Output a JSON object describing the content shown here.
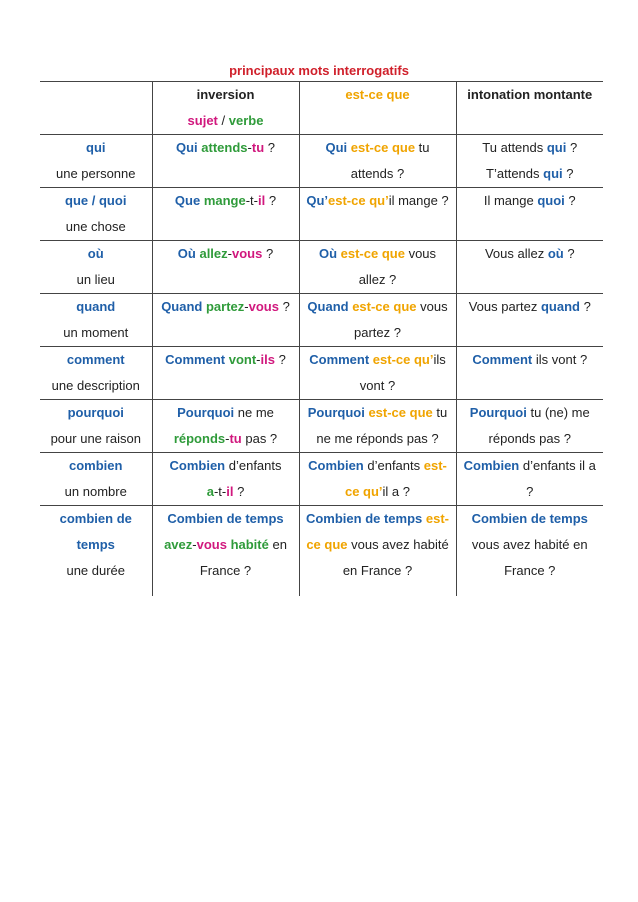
{
  "title": "principaux mots interrogatifs",
  "colors": {
    "title": "#d0202b",
    "interrogative": "#1f5fa8",
    "verb": "#2f9b3a",
    "subject": "#d1187e",
    "est_ce_que": "#f0a400"
  },
  "header": [
    [
      [
        {
          "t": "inversion",
          "c": "b"
        }
      ],
      [
        {
          "t": "sujet",
          "c": "pink"
        },
        {
          "t": " / ",
          "c": "dark"
        },
        {
          "t": "verbe",
          "c": "green"
        }
      ]
    ],
    [
      [
        {
          "t": "est-ce que",
          "c": "orange"
        }
      ]
    ],
    [
      [
        {
          "t": "intonation montante",
          "c": "b"
        }
      ]
    ]
  ],
  "rows": [
    {
      "word": "qui",
      "desc": "une personne",
      "inv": [
        [
          {
            "t": "Qui ",
            "c": "blue"
          },
          {
            "t": "attends",
            "c": "green"
          },
          {
            "t": "-",
            "c": "dark"
          },
          {
            "t": "tu",
            "c": "pink"
          },
          {
            "t": " ?",
            "c": ""
          }
        ]
      ],
      "est": [
        [
          {
            "t": "Qui ",
            "c": "blue"
          },
          {
            "t": "est-ce que",
            "c": "orange"
          },
          {
            "t": " tu",
            "c": ""
          }
        ],
        [
          {
            "t": "attends ?",
            "c": ""
          }
        ]
      ],
      "into": [
        [
          {
            "t": "Tu attends ",
            "c": ""
          },
          {
            "t": "qui",
            "c": "blue"
          },
          {
            "t": " ?",
            "c": ""
          }
        ],
        [
          {
            "t": "T’attends ",
            "c": ""
          },
          {
            "t": "qui",
            "c": "blue"
          },
          {
            "t": " ?",
            "c": ""
          }
        ]
      ]
    },
    {
      "word": "que / quoi",
      "desc": "une chose",
      "inv": [
        [
          {
            "t": "Que ",
            "c": "blue"
          },
          {
            "t": "mange",
            "c": "green"
          },
          {
            "t": "-t-",
            "c": ""
          },
          {
            "t": "il",
            "c": "pink"
          },
          {
            "t": " ?",
            "c": ""
          }
        ]
      ],
      "est": [
        [
          {
            "t": "Qu’",
            "c": "blue"
          },
          {
            "t": "est-ce qu’",
            "c": "orange"
          },
          {
            "t": "il mange ?",
            "c": ""
          }
        ]
      ],
      "into": [
        [
          {
            "t": "Il mange ",
            "c": ""
          },
          {
            "t": "quoi",
            "c": "blue"
          },
          {
            "t": " ?",
            "c": ""
          }
        ]
      ]
    },
    {
      "word": "où",
      "desc": "un lieu",
      "inv": [
        [
          {
            "t": "Où ",
            "c": "blue"
          },
          {
            "t": "allez",
            "c": "green"
          },
          {
            "t": "-",
            "c": ""
          },
          {
            "t": "vous",
            "c": "pink"
          },
          {
            "t": " ?",
            "c": ""
          }
        ]
      ],
      "est": [
        [
          {
            "t": "Où ",
            "c": "blue"
          },
          {
            "t": "est-ce que",
            "c": "orange"
          },
          {
            "t": " vous",
            "c": ""
          }
        ],
        [
          {
            "t": "allez ?",
            "c": ""
          }
        ]
      ],
      "into": [
        [
          {
            "t": "Vous allez ",
            "c": ""
          },
          {
            "t": "où",
            "c": "blue"
          },
          {
            "t": " ?",
            "c": ""
          }
        ]
      ]
    },
    {
      "word": "quand",
      "desc": "un moment",
      "inv": [
        [
          {
            "t": "Quand ",
            "c": "blue"
          },
          {
            "t": "partez",
            "c": "green"
          },
          {
            "t": "-",
            "c": ""
          },
          {
            "t": "vous",
            "c": "pink"
          },
          {
            "t": " ?",
            "c": ""
          }
        ]
      ],
      "est": [
        [
          {
            "t": "Quand ",
            "c": "blue"
          },
          {
            "t": "est-ce que",
            "c": "orange"
          },
          {
            "t": " vous",
            "c": ""
          }
        ],
        [
          {
            "t": "partez ?",
            "c": ""
          }
        ]
      ],
      "into": [
        [
          {
            "t": "Vous partez ",
            "c": ""
          },
          {
            "t": "quand",
            "c": "blue"
          },
          {
            "t": " ?",
            "c": ""
          }
        ]
      ]
    },
    {
      "word": "comment",
      "desc": "une description",
      "inv": [
        [
          {
            "t": "Comment ",
            "c": "blue"
          },
          {
            "t": "vont",
            "c": "green"
          },
          {
            "t": "-",
            "c": ""
          },
          {
            "t": "ils",
            "c": "pink"
          },
          {
            "t": " ?",
            "c": ""
          }
        ]
      ],
      "est": [
        [
          {
            "t": "Comment ",
            "c": "blue"
          },
          {
            "t": "est-ce qu’",
            "c": "orange"
          },
          {
            "t": "ils",
            "c": ""
          }
        ],
        [
          {
            "t": "vont ?",
            "c": ""
          }
        ]
      ],
      "into": [
        [
          {
            "t": "Comment",
            "c": "blue"
          },
          {
            "t": " ils vont ?",
            "c": ""
          }
        ]
      ]
    },
    {
      "word": "pourquoi",
      "desc": "pour une raison",
      "inv": [
        [
          {
            "t": "Pourquoi",
            "c": "blue"
          },
          {
            "t": " ne me",
            "c": ""
          }
        ],
        [
          {
            "t": "réponds",
            "c": "green"
          },
          {
            "t": "-",
            "c": ""
          },
          {
            "t": "tu",
            "c": "pink"
          },
          {
            "t": " pas ?",
            "c": ""
          }
        ]
      ],
      "est": [
        [
          {
            "t": "Pourquoi ",
            "c": "blue"
          },
          {
            "t": "est-ce que",
            "c": "orange"
          },
          {
            "t": " tu",
            "c": ""
          }
        ],
        [
          {
            "t": "ne me réponds pas ?",
            "c": ""
          }
        ]
      ],
      "into": [
        [
          {
            "t": "Pourquoi",
            "c": "blue"
          },
          {
            "t": " tu (ne) me",
            "c": ""
          }
        ],
        [
          {
            "t": "réponds pas ?",
            "c": ""
          }
        ]
      ]
    },
    {
      "word": "combien",
      "desc": "un nombre",
      "inv": [
        [
          {
            "t": "Combien",
            "c": "blue"
          },
          {
            "t": " d’enfants",
            "c": ""
          }
        ],
        [
          {
            "t": "a",
            "c": "green"
          },
          {
            "t": "-t-",
            "c": ""
          },
          {
            "t": "il",
            "c": "pink"
          },
          {
            "t": " ?",
            "c": ""
          }
        ]
      ],
      "est": [
        [
          {
            "t": "Combien",
            "c": "blue"
          },
          {
            "t": " d’enfants ",
            "c": ""
          },
          {
            "t": "est-",
            "c": "orange"
          }
        ],
        [
          {
            "t": "ce qu’",
            "c": "orange"
          },
          {
            "t": "il a ?",
            "c": ""
          }
        ]
      ],
      "into": [
        [
          {
            "t": "Combien",
            "c": "blue"
          },
          {
            "t": " d’enfants il a ?",
            "c": ""
          }
        ]
      ]
    },
    {
      "word": "combien de temps",
      "desc": "une durée",
      "inv": [
        [
          {
            "t": "Combien de temps",
            "c": "blue"
          }
        ],
        [
          {
            "t": "avez",
            "c": "green"
          },
          {
            "t": "-",
            "c": ""
          },
          {
            "t": "vous",
            "c": "pink"
          },
          {
            "t": " habité",
            "c": "green"
          },
          {
            "t": " en",
            "c": ""
          }
        ],
        [
          {
            "t": "France ?",
            "c": ""
          }
        ]
      ],
      "est": [
        [
          {
            "t": "Combien de temps ",
            "c": "blue"
          },
          {
            "t": "est-",
            "c": "orange"
          }
        ],
        [
          {
            "t": "ce que",
            "c": "orange"
          },
          {
            "t": " vous avez habité",
            "c": ""
          }
        ],
        [
          {
            "t": "en France ?",
            "c": ""
          }
        ]
      ],
      "into": [
        [
          {
            "t": "Combien de temps",
            "c": "blue"
          }
        ],
        [
          {
            "t": "vous avez habité en",
            "c": ""
          }
        ],
        [
          {
            "t": "France ?",
            "c": ""
          }
        ]
      ]
    }
  ]
}
